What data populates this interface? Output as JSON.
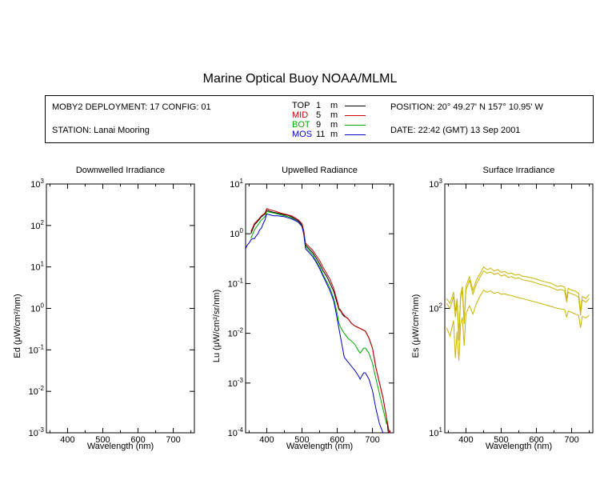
{
  "title": "Marine Optical Buoy NOAA/MLML",
  "info": {
    "deployment": "MOBY2 DEPLOYMENT: 17 CONFIG: 01",
    "station": "STATION: Lanai Mooring",
    "position": "POSITION: 20° 49.27' N   157° 10.95' W",
    "date": "DATE: 22:42 (GMT) 13 Sep 2001"
  },
  "legend": [
    {
      "name": "TOP",
      "depth": "1",
      "unit": "m",
      "color": "#000000"
    },
    {
      "name": "MID",
      "depth": "5",
      "unit": "m",
      "color": "#cc0000"
    },
    {
      "name": "BOT",
      "depth": "9",
      "unit": "m",
      "color": "#00aa00"
    },
    {
      "name": "MOS",
      "depth": "11",
      "unit": "m",
      "color": "#0000cc"
    }
  ],
  "chart_data": [
    {
      "type": "line",
      "title": "Downwelled Irradiance",
      "xlabel": "Wavelength (nm)",
      "ylabel": "Ed  (μW/cm²/nm)",
      "xlim": [
        340,
        760
      ],
      "ylim": [
        0.001,
        1000
      ],
      "yscale": "log",
      "xticks": [
        400,
        500,
        600,
        700
      ],
      "yticks": [
        {
          "base": "10",
          "exp": "-3"
        },
        {
          "base": "10",
          "exp": "-2"
        },
        {
          "base": "10",
          "exp": "-1"
        },
        {
          "base": "10",
          "exp": "0"
        },
        {
          "base": "10",
          "exp": "1"
        },
        {
          "base": "10",
          "exp": "2"
        },
        {
          "base": "10",
          "exp": "3"
        }
      ],
      "series": []
    },
    {
      "type": "line",
      "title": "Upwelled Radiance",
      "xlabel": "Wavelength (nm)",
      "ylabel": "Lu  (μW/cm²/sr/nm)",
      "xlim": [
        340,
        760
      ],
      "ylim": [
        0.0001,
        10
      ],
      "yscale": "log",
      "xticks": [
        400,
        500,
        600,
        700
      ],
      "yticks": [
        {
          "base": "10",
          "exp": "-4"
        },
        {
          "base": "10",
          "exp": "-3"
        },
        {
          "base": "10",
          "exp": "-2"
        },
        {
          "base": "10",
          "exp": "-1"
        },
        {
          "base": "10",
          "exp": "0"
        },
        {
          "base": "10",
          "exp": "1"
        }
      ],
      "series": [
        {
          "name": "TOP",
          "color": "#000000",
          "x": [
            355,
            365,
            375,
            385,
            395,
            400,
            410,
            420,
            430,
            440,
            450,
            460,
            470,
            480,
            490,
            500,
            505,
            510,
            520,
            530,
            540,
            550,
            560,
            570,
            580,
            590,
            600,
            605,
            610,
            615,
            620,
            625,
            630,
            640,
            650,
            660,
            670,
            680,
            690,
            700,
            710,
            720,
            730,
            740,
            745
          ],
          "y": [
            1.0,
            1.5,
            1.8,
            2.2,
            2.5,
            3.0,
            2.8,
            2.7,
            2.6,
            2.5,
            2.4,
            2.35,
            2.2,
            2.0,
            1.8,
            1.5,
            1.1,
            0.6,
            0.5,
            0.42,
            0.33,
            0.25,
            0.18,
            0.14,
            0.1,
            0.07,
            0.04,
            0.03,
            0.028,
            0.024,
            0.022,
            0.021,
            0.02,
            0.016,
            0.014,
            0.013,
            0.012,
            0.011,
            0.008,
            0.005,
            0.002,
            0.001,
            0.0005,
            0.0002,
            0.0001
          ]
        },
        {
          "name": "MID",
          "color": "#cc0000",
          "x": [
            355,
            365,
            375,
            385,
            395,
            400,
            410,
            420,
            430,
            440,
            450,
            460,
            470,
            480,
            490,
            500,
            505,
            510,
            520,
            530,
            540,
            550,
            560,
            570,
            580,
            590,
            600,
            605,
            610,
            615,
            620,
            625,
            630,
            640,
            650,
            660,
            670,
            680,
            690,
            700,
            710,
            720,
            730,
            740,
            748
          ],
          "y": [
            1.1,
            1.6,
            1.9,
            2.3,
            2.6,
            3.2,
            3.0,
            2.9,
            2.75,
            2.6,
            2.5,
            2.4,
            2.3,
            2.1,
            1.9,
            1.6,
            1.15,
            0.65,
            0.55,
            0.47,
            0.37,
            0.29,
            0.21,
            0.16,
            0.12,
            0.08,
            0.045,
            0.032,
            0.029,
            0.025,
            0.023,
            0.021,
            0.02,
            0.016,
            0.014,
            0.013,
            0.012,
            0.011,
            0.008,
            0.005,
            0.002,
            0.001,
            0.0005,
            0.0002,
            0.0001
          ]
        },
        {
          "name": "BOT",
          "color": "#00aa00",
          "x": [
            355,
            365,
            375,
            385,
            395,
            400,
            410,
            420,
            430,
            440,
            450,
            460,
            470,
            480,
            490,
            500,
            505,
            510,
            520,
            530,
            540,
            550,
            560,
            570,
            580,
            590,
            600,
            605,
            610,
            620,
            630,
            640,
            650,
            660,
            665,
            670,
            675,
            680,
            690,
            700,
            710,
            720,
            730,
            740
          ],
          "y": [
            0.8,
            1.2,
            1.5,
            1.9,
            2.2,
            2.8,
            2.7,
            2.6,
            2.5,
            2.4,
            2.3,
            2.2,
            2.1,
            1.9,
            1.7,
            1.4,
            1.0,
            0.55,
            0.46,
            0.38,
            0.29,
            0.22,
            0.15,
            0.11,
            0.08,
            0.05,
            0.025,
            0.016,
            0.013,
            0.01,
            0.008,
            0.007,
            0.006,
            0.0045,
            0.004,
            0.0045,
            0.005,
            0.005,
            0.004,
            0.0025,
            0.0012,
            0.0006,
            0.0003,
            0.00015
          ]
        },
        {
          "name": "MOS",
          "color": "#0000cc",
          "x": [
            340,
            345,
            350,
            355,
            360,
            365,
            370,
            375,
            380,
            385,
            390,
            395,
            400,
            410,
            420,
            430,
            440,
            450,
            460,
            470,
            480,
            490,
            500,
            505,
            510,
            520,
            530,
            540,
            550,
            560,
            570,
            580,
            590,
            595,
            620,
            630,
            640,
            650,
            660,
            665,
            670,
            675,
            680,
            690,
            700,
            710,
            720,
            730
          ],
          "y": [
            0.5,
            0.6,
            0.65,
            0.75,
            0.8,
            0.8,
            0.9,
            1.0,
            1.2,
            1.3,
            1.6,
            1.9,
            2.5,
            2.4,
            2.3,
            2.3,
            2.25,
            2.2,
            2.1,
            2.0,
            1.85,
            1.7,
            1.4,
            1.0,
            0.5,
            0.42,
            0.35,
            0.27,
            0.2,
            0.14,
            0.1,
            0.07,
            0.045,
            0.03,
            0.0033,
            0.0027,
            0.0022,
            0.0018,
            0.0014,
            0.0012,
            0.0014,
            0.0016,
            0.0016,
            0.0012,
            0.0007,
            0.0003,
            0.00015,
            0.0001
          ]
        }
      ]
    },
    {
      "type": "line",
      "title": "Surface Irradiance",
      "xlabel": "Wavelength (nm)",
      "ylabel": "Es  (μW/cm²/nm)",
      "xlim": [
        340,
        760
      ],
      "ylim": [
        10,
        1000
      ],
      "yscale": "log",
      "xticks": [
        400,
        500,
        600,
        700
      ],
      "yticks": [
        {
          "base": "10",
          "exp": "1"
        },
        {
          "base": "10",
          "exp": "2"
        },
        {
          "base": "10",
          "exp": "3"
        }
      ],
      "series": [
        {
          "name": "",
          "color": "#c8b400",
          "x": [
            345,
            355,
            365,
            370,
            375,
            380,
            385,
            390,
            395,
            400,
            410,
            420,
            430,
            440,
            450,
            460,
            470,
            480,
            490,
            500,
            510,
            520,
            530,
            540,
            550,
            560,
            570,
            580,
            590,
            600,
            610,
            620,
            630,
            640,
            650,
            660,
            670,
            680,
            686,
            690,
            700,
            710,
            720,
            725,
            730,
            740,
            750
          ],
          "y": [
            120,
            110,
            135,
            95,
            120,
            60,
            130,
            150,
            80,
            150,
            180,
            140,
            170,
            190,
            215,
            205,
            210,
            200,
            205,
            195,
            198,
            190,
            192,
            185,
            188,
            182,
            180,
            178,
            175,
            172,
            168,
            165,
            162,
            160,
            155,
            150,
            152,
            148,
            120,
            145,
            140,
            138,
            132,
            95,
            125,
            120,
            130
          ]
        },
        {
          "name": "",
          "color": "#c8b400",
          "x": [
            345,
            355,
            365,
            370,
            375,
            380,
            385,
            390,
            395,
            400,
            410,
            420,
            430,
            440,
            450,
            460,
            470,
            480,
            490,
            500,
            510,
            520,
            530,
            540,
            550,
            560,
            570,
            580,
            590,
            600,
            610,
            620,
            630,
            640,
            650,
            660,
            670,
            680,
            686,
            690,
            700,
            710,
            720,
            725,
            730,
            740,
            750
          ],
          "y": [
            110,
            100,
            125,
            85,
            110,
            55,
            120,
            140,
            75,
            140,
            168,
            130,
            158,
            178,
            200,
            192,
            196,
            188,
            192,
            182,
            186,
            178,
            180,
            174,
            176,
            170,
            168,
            166,
            163,
            160,
            156,
            154,
            151,
            148,
            144,
            140,
            142,
            138,
            112,
            135,
            131,
            128,
            123,
            88,
            117,
            112,
            120
          ]
        },
        {
          "name": "",
          "color": "#c8b400",
          "x": [
            345,
            355,
            365,
            370,
            375,
            380,
            385,
            390,
            395,
            400,
            410,
            420,
            430,
            440,
            450,
            460,
            470,
            480,
            490,
            500,
            510,
            520,
            530,
            540,
            550,
            560,
            570,
            580,
            590,
            600,
            610,
            620,
            630,
            640,
            650,
            660,
            670,
            680,
            686,
            690,
            700,
            710,
            720,
            725,
            730,
            740,
            750
          ],
          "y": [
            70,
            60,
            80,
            40,
            65,
            38,
            75,
            85,
            50,
            90,
            105,
            90,
            110,
            125,
            140,
            135,
            138,
            132,
            135,
            130,
            131,
            128,
            127,
            124,
            122,
            120,
            118,
            116,
            114,
            112,
            110,
            108,
            106,
            104,
            102,
            100,
            99,
            98,
            85,
            95,
            93,
            90,
            88,
            70,
            86,
            84,
            88
          ]
        }
      ]
    }
  ]
}
